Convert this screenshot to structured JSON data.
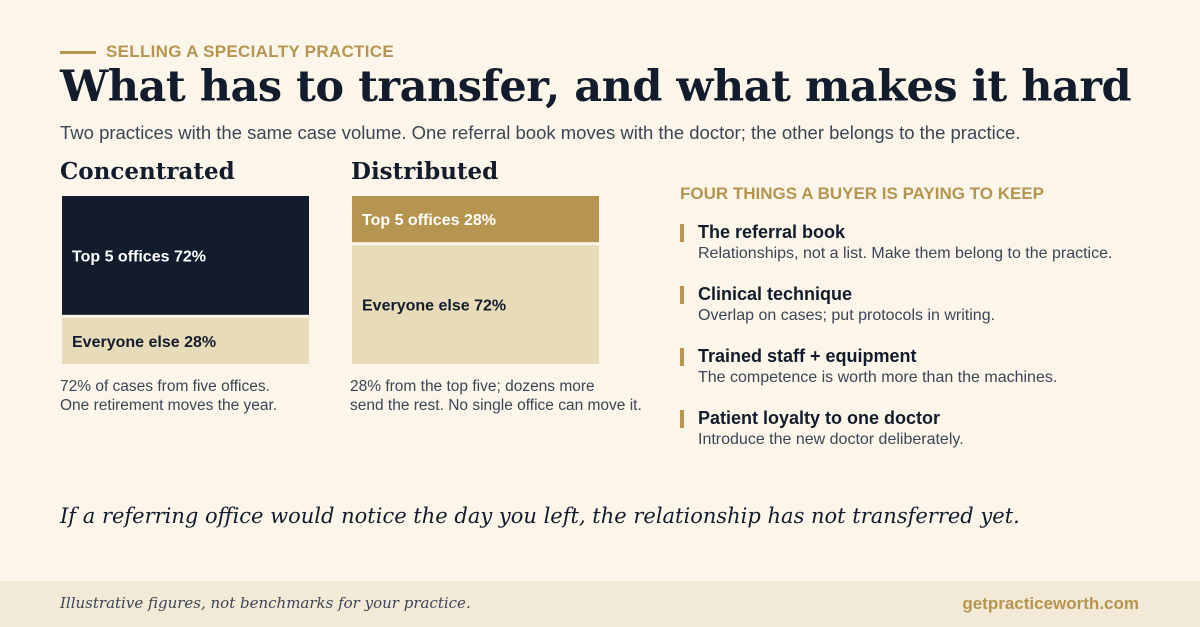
{
  "eyebrow": "SELLING A SPECIALTY PRACTICE",
  "title": "What has to transfer, and what makes it hard",
  "subtitle": "Two practices with the same case volume. One referral book moves with the doctor; the other belongs to the practice.",
  "colors": {
    "navy": "#121c2c",
    "gold": "#b59550",
    "sand": "#e8dbb9",
    "background": "#fbf5ea"
  },
  "chart_data": [
    {
      "type": "bar",
      "stacked": true,
      "title": "Concentrated",
      "unit": "%",
      "segments": [
        {
          "name": "Top 5 offices",
          "value": 72,
          "label": "Top 5 offices  72%",
          "color": "#121c2c",
          "text_color": "#ffffff"
        },
        {
          "name": "Everyone else",
          "value": 28,
          "label": "Everyone else  28%",
          "color": "#e8dbb9",
          "text_color": "#121c2c"
        }
      ],
      "caption": [
        "72% of cases from five offices.",
        "One retirement moves the year."
      ]
    },
    {
      "type": "bar",
      "stacked": true,
      "title": "Distributed",
      "unit": "%",
      "segments": [
        {
          "name": "Top 5 offices",
          "value": 28,
          "label": "Top 5 offices  28%",
          "color": "#b59550",
          "text_color": "#ffffff"
        },
        {
          "name": "Everyone else",
          "value": 72,
          "label": "Everyone else  72%",
          "color": "#e8dbb9",
          "text_color": "#121c2c"
        }
      ],
      "caption": [
        "28% from the top five; dozens more",
        "send the rest. No single office can move it."
      ]
    }
  ],
  "keep": {
    "heading": "FOUR THINGS A BUYER IS PAYING TO KEEP",
    "items": [
      {
        "title": "The referral book",
        "desc": "Relationships, not a list. Make them belong to the practice."
      },
      {
        "title": "Clinical technique",
        "desc": "Overlap on cases; put protocols in writing."
      },
      {
        "title": "Trained staff + equipment",
        "desc": "The competence is worth more than the machines."
      },
      {
        "title": "Patient loyalty to one doctor",
        "desc": "Introduce the new doctor deliberately."
      }
    ]
  },
  "quote": "If a referring office would notice the day you left, the relationship has not transferred yet.",
  "footer": {
    "note": "Illustrative figures, not benchmarks for your practice.",
    "url": "getpracticeworth.com"
  }
}
